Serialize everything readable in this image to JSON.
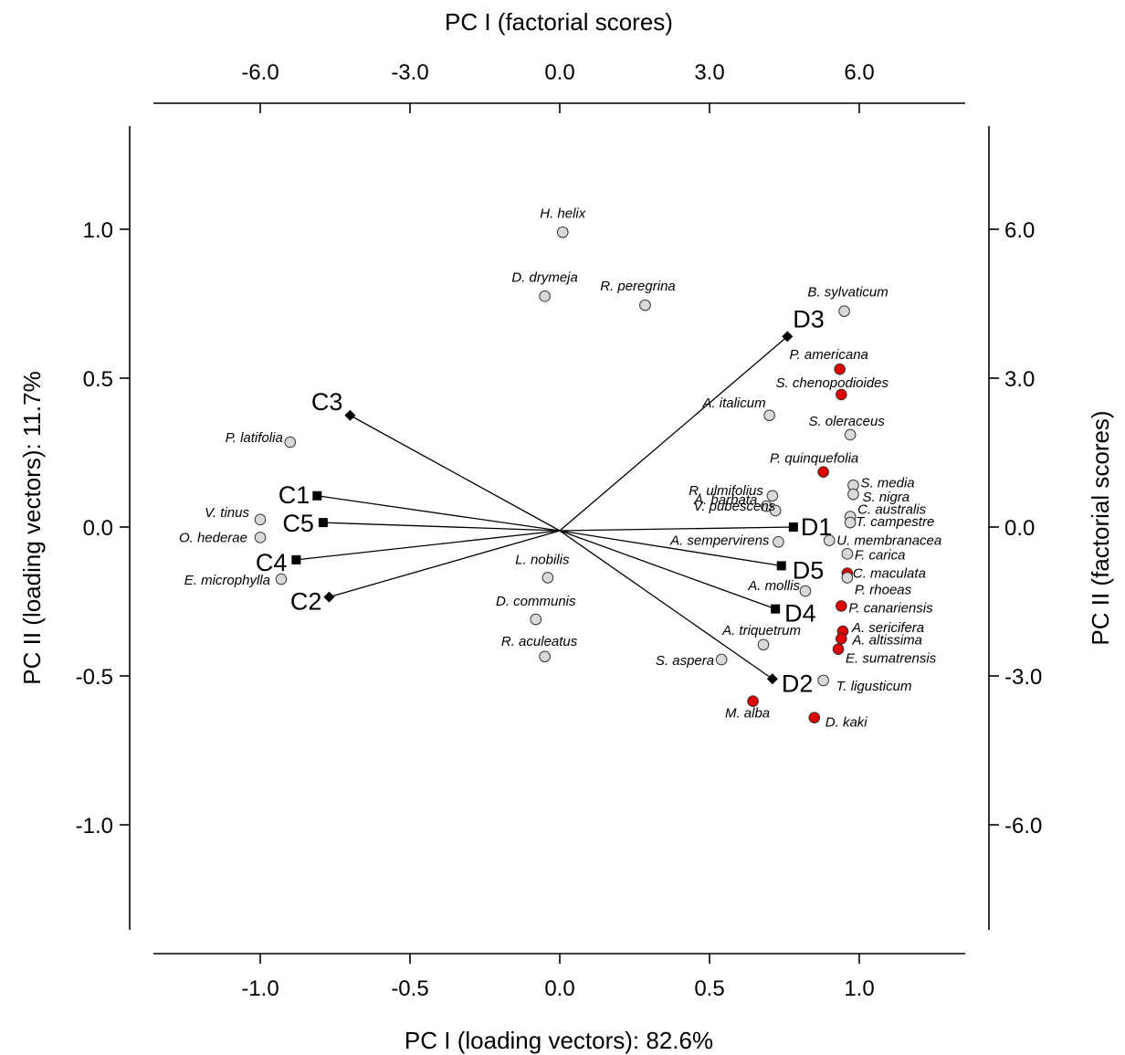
{
  "chart_data": {
    "type": "scatter",
    "subtype": "biplot",
    "axes": {
      "bottom": {
        "label": "PC I (loading vectors): 82.6%",
        "range": [
          -1.35,
          1.35
        ],
        "ticks": [
          "-1.0",
          "-0.5",
          "0.0",
          "0.5",
          "1.0"
        ]
      },
      "top": {
        "label": "PC I (factorial scores)",
        "range": [
          -8.1,
          8.1
        ],
        "ticks": [
          "-6.0",
          "-3.0",
          "0.0",
          "3.0",
          "6.0"
        ]
      },
      "left": {
        "label": "PC II (loading vectors): 11.7%",
        "range": [
          -1.35,
          1.35
        ],
        "ticks": [
          "1.0",
          "0.5",
          "0.0",
          "-0.5",
          "-1.0"
        ]
      },
      "right": {
        "label": "PC II (factorial scores)",
        "range": [
          -8.1,
          8.1
        ],
        "ticks": [
          "6.0",
          "3.0",
          "0.0",
          "-3.0",
          "-6.0"
        ]
      }
    },
    "grid": false,
    "colors": {
      "grey_point": "#d9d9d9",
      "red_point": "#e00000",
      "vector": "#000000"
    },
    "vectors": [
      {
        "name": "C1",
        "x": -0.81,
        "y": 0.105,
        "marker": "square"
      },
      {
        "name": "C2",
        "x": -0.77,
        "y": -0.235,
        "marker": "diamond"
      },
      {
        "name": "C3",
        "x": -0.7,
        "y": 0.375,
        "marker": "diamond"
      },
      {
        "name": "C4",
        "x": -0.88,
        "y": -0.11,
        "marker": "square"
      },
      {
        "name": "C5",
        "x": -0.79,
        "y": 0.015,
        "marker": "square"
      },
      {
        "name": "D1",
        "x": 0.78,
        "y": 0.0,
        "marker": "square"
      },
      {
        "name": "D2",
        "x": 0.71,
        "y": -0.51,
        "marker": "diamond"
      },
      {
        "name": "D3",
        "x": 0.76,
        "y": 0.64,
        "marker": "diamond"
      },
      {
        "name": "D4",
        "x": 0.72,
        "y": -0.275,
        "marker": "square"
      },
      {
        "name": "D5",
        "x": 0.74,
        "y": -0.13,
        "marker": "square"
      }
    ],
    "points": [
      {
        "name": "H. helix",
        "x": 0.01,
        "y": 0.99,
        "group": "grey"
      },
      {
        "name": "D. drymeja",
        "x": -0.05,
        "y": 0.775,
        "group": "grey"
      },
      {
        "name": "R. peregrina",
        "x": 0.285,
        "y": 0.745,
        "group": "grey"
      },
      {
        "name": "B. sylvaticum",
        "x": 0.95,
        "y": 0.725,
        "group": "grey"
      },
      {
        "name": "P. americana",
        "x": 0.935,
        "y": 0.53,
        "group": "red"
      },
      {
        "name": "S. chenopodioides",
        "x": 0.94,
        "y": 0.445,
        "group": "red"
      },
      {
        "name": "A. italicum",
        "x": 0.7,
        "y": 0.375,
        "group": "grey"
      },
      {
        "name": "S. oleraceus",
        "x": 0.97,
        "y": 0.31,
        "group": "grey"
      },
      {
        "name": "P. latifolia",
        "x": -0.9,
        "y": 0.285,
        "group": "grey"
      },
      {
        "name": "P. quinquefolia",
        "x": 0.88,
        "y": 0.185,
        "group": "red"
      },
      {
        "name": "S. media",
        "x": 0.98,
        "y": 0.14,
        "group": "grey"
      },
      {
        "name": "S. nigra",
        "x": 0.98,
        "y": 0.11,
        "group": "grey"
      },
      {
        "name": "R. ulmifolius",
        "x": 0.71,
        "y": 0.105,
        "group": "grey"
      },
      {
        "name": "A. barbata",
        "x": 0.69,
        "y": 0.07,
        "group": "grey"
      },
      {
        "name": "V. pubescens",
        "x": 0.72,
        "y": 0.055,
        "group": "grey"
      },
      {
        "name": "C. australis",
        "x": 0.97,
        "y": 0.035,
        "group": "grey"
      },
      {
        "name": "T. campestre",
        "x": 0.97,
        "y": 0.015,
        "group": "grey"
      },
      {
        "name": "V. tinus",
        "x": -1.0,
        "y": 0.025,
        "group": "grey"
      },
      {
        "name": "O. hederae",
        "x": -1.0,
        "y": -0.035,
        "group": "grey"
      },
      {
        "name": "A. sempervirens",
        "x": 0.73,
        "y": -0.05,
        "group": "grey"
      },
      {
        "name": "U. membranacea",
        "x": 0.9,
        "y": -0.045,
        "group": "grey"
      },
      {
        "name": "F. carica",
        "x": 0.96,
        "y": -0.09,
        "group": "grey"
      },
      {
        "name": "E. microphylla",
        "x": -0.93,
        "y": -0.175,
        "group": "grey"
      },
      {
        "name": "L. nobilis",
        "x": -0.04,
        "y": -0.17,
        "group": "grey"
      },
      {
        "name": "C. maculata",
        "x": 0.96,
        "y": -0.155,
        "group": "red"
      },
      {
        "name": "P. rhoeas",
        "x": 0.96,
        "y": -0.17,
        "group": "grey"
      },
      {
        "name": "A. mollis",
        "x": 0.82,
        "y": -0.215,
        "group": "grey"
      },
      {
        "name": "P. canariensis",
        "x": 0.94,
        "y": -0.265,
        "group": "red"
      },
      {
        "name": "D. communis",
        "x": -0.08,
        "y": -0.31,
        "group": "grey"
      },
      {
        "name": "A. triquetrum",
        "x": 0.68,
        "y": -0.395,
        "group": "grey"
      },
      {
        "name": "A. sericifera",
        "x": 0.945,
        "y": -0.35,
        "group": "red"
      },
      {
        "name": "A. altissima",
        "x": 0.94,
        "y": -0.375,
        "group": "red"
      },
      {
        "name": "E. sumatrensis",
        "x": 0.93,
        "y": -0.41,
        "group": "red"
      },
      {
        "name": "R. aculeatus",
        "x": -0.05,
        "y": -0.435,
        "group": "grey"
      },
      {
        "name": "S. aspera",
        "x": 0.54,
        "y": -0.445,
        "group": "grey"
      },
      {
        "name": "T. ligusticum",
        "x": 0.88,
        "y": -0.515,
        "group": "grey"
      },
      {
        "name": "M. alba",
        "x": 0.645,
        "y": -0.585,
        "group": "red"
      },
      {
        "name": "D. kaki",
        "x": 0.85,
        "y": -0.64,
        "group": "red"
      }
    ]
  }
}
